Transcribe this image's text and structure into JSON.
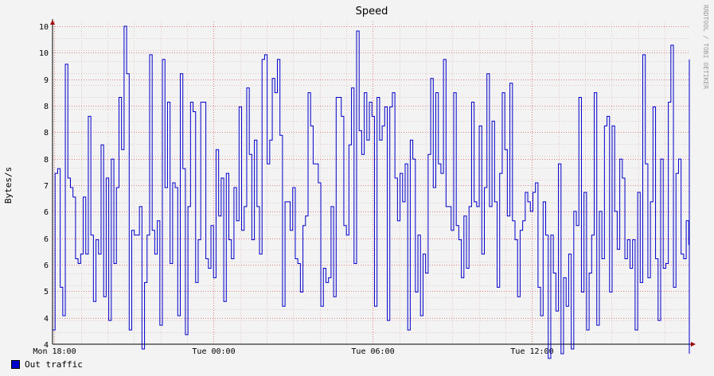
{
  "chart_data": {
    "type": "line",
    "title": "Speed",
    "ylabel": "Bytes/s",
    "watermark": "RRDTOOL / TOBI OETIKER",
    "y_tick_labels": [
      "4",
      "4",
      "5",
      "6",
      "6",
      "6",
      "7",
      "8",
      "8",
      "8",
      "9",
      "10",
      "10"
    ],
    "x_tick_labels": [
      "Mon 18:00",
      "Tue 00:00",
      "Tue 06:00",
      "Tue 12:00"
    ],
    "x_tick_hours": [
      18,
      24,
      30,
      36
    ],
    "x_range_hours": [
      17.93,
      41.93
    ],
    "ylim": [
      4,
      10.7
    ],
    "grid": true,
    "legend_position": "bottom-left",
    "series": [
      {
        "name": "Out traffic",
        "color": "#0000cc",
        "step_hours": 0.0963,
        "values": [
          4.3,
          7.6,
          7.7,
          5.2,
          4.6,
          9.9,
          7.5,
          7.3,
          7.1,
          5.8,
          5.7,
          5.9,
          7.1,
          5.9,
          8.8,
          6.3,
          4.9,
          6.2,
          5.9,
          8.2,
          5.0,
          7.5,
          4.5,
          7.9,
          5.7,
          7.3,
          9.2,
          8.1,
          10.7,
          9.7,
          4.3,
          6.4,
          6.3,
          6.3,
          6.9,
          3.9,
          5.3,
          6.3,
          10.1,
          6.4,
          5.9,
          6.6,
          4.4,
          10.0,
          7.3,
          9.1,
          5.7,
          7.4,
          7.3,
          4.6,
          9.7,
          7.7,
          4.2,
          6.9,
          9.1,
          8.9,
          5.3,
          6.2,
          9.1,
          9.1,
          5.8,
          5.6,
          6.5,
          5.4,
          8.1,
          6.7,
          7.5,
          4.9,
          7.6,
          6.2,
          5.8,
          7.3,
          6.6,
          9.0,
          6.4,
          6.9,
          9.4,
          8.0,
          6.2,
          8.3,
          6.9,
          5.9,
          10.0,
          10.1,
          7.8,
          8.3,
          9.6,
          9.3,
          10.0,
          8.4,
          4.8,
          7.0,
          7.0,
          6.4,
          7.3,
          5.8,
          5.7,
          5.1,
          6.5,
          6.7,
          9.3,
          8.6,
          7.8,
          7.8,
          7.4,
          4.8,
          5.6,
          5.3,
          5.4,
          6.9,
          5.0,
          9.2,
          9.2,
          8.8,
          6.5,
          6.3,
          8.2,
          9.4,
          5.7,
          10.6,
          8.5,
          8.0,
          9.3,
          8.3,
          9.1,
          8.8,
          4.8,
          9.2,
          8.3,
          8.6,
          9.0,
          4.5,
          9.0,
          9.3,
          7.5,
          6.6,
          7.6,
          7.0,
          7.8,
          4.3,
          8.3,
          7.9,
          5.1,
          6.3,
          4.6,
          5.9,
          5.5,
          8.0,
          9.6,
          7.3,
          9.3,
          7.8,
          7.6,
          10.0,
          6.9,
          6.9,
          6.4,
          9.3,
          6.5,
          6.2,
          5.4,
          6.7,
          5.6,
          6.9,
          9.1,
          7.0,
          6.9,
          8.6,
          5.9,
          7.3,
          9.7,
          6.9,
          8.7,
          7.0,
          5.2,
          7.6,
          9.3,
          8.1,
          6.7,
          9.5,
          6.6,
          6.2,
          5.0,
          6.4,
          6.6,
          7.2,
          7.0,
          6.8,
          7.2,
          7.4,
          5.2,
          4.6,
          7.0,
          6.3,
          3.7,
          6.3,
          5.5,
          4.7,
          7.8,
          3.8,
          5.4,
          4.8,
          5.9,
          3.9,
          6.8,
          6.5,
          9.2,
          5.1,
          7.2,
          4.3,
          5.5,
          6.3,
          9.3,
          4.4,
          6.8,
          5.8,
          8.6,
          8.8,
          5.1,
          8.6,
          6.8,
          6.0,
          7.9,
          7.5,
          5.8,
          6.2,
          5.6,
          6.2,
          4.3,
          7.2,
          5.3,
          10.1,
          7.8,
          5.4,
          7.0,
          9.0,
          5.8,
          4.5,
          7.9,
          5.6,
          5.7,
          9.1,
          10.3,
          5.2,
          7.6,
          7.9,
          5.9,
          5.8,
          6.6,
          6.1,
          5.9,
          5.5,
          6.7,
          3.9,
          6.4,
          6.6,
          4.1,
          7.8,
          8.4,
          8.8,
          8.3,
          10.0,
          9.5,
          9.8,
          9.9,
          4.4,
          9.3,
          8.6,
          7.9,
          5.5,
          9.6,
          7.4,
          4.8,
          4.7,
          9.1,
          5.6,
          8.2,
          6.5,
          6.5,
          6.0,
          3.8,
          6.5,
          5.7,
          9.2,
          8.1,
          5.5,
          4.5,
          8.2,
          7.8,
          4.8,
          4.2,
          5.3,
          6.9,
          6.2,
          9.3,
          7.2,
          6.4,
          6.9,
          6.7,
          4.5,
          8.1,
          4.4,
          6.0,
          7.7,
          4.3,
          5.7,
          5.9,
          5.8,
          4.8,
          6.7,
          9.1,
          4.4,
          7.1,
          9.1,
          7.9,
          8.3,
          3.8,
          5.8,
          5.7,
          9.3
        ]
      }
    ]
  }
}
